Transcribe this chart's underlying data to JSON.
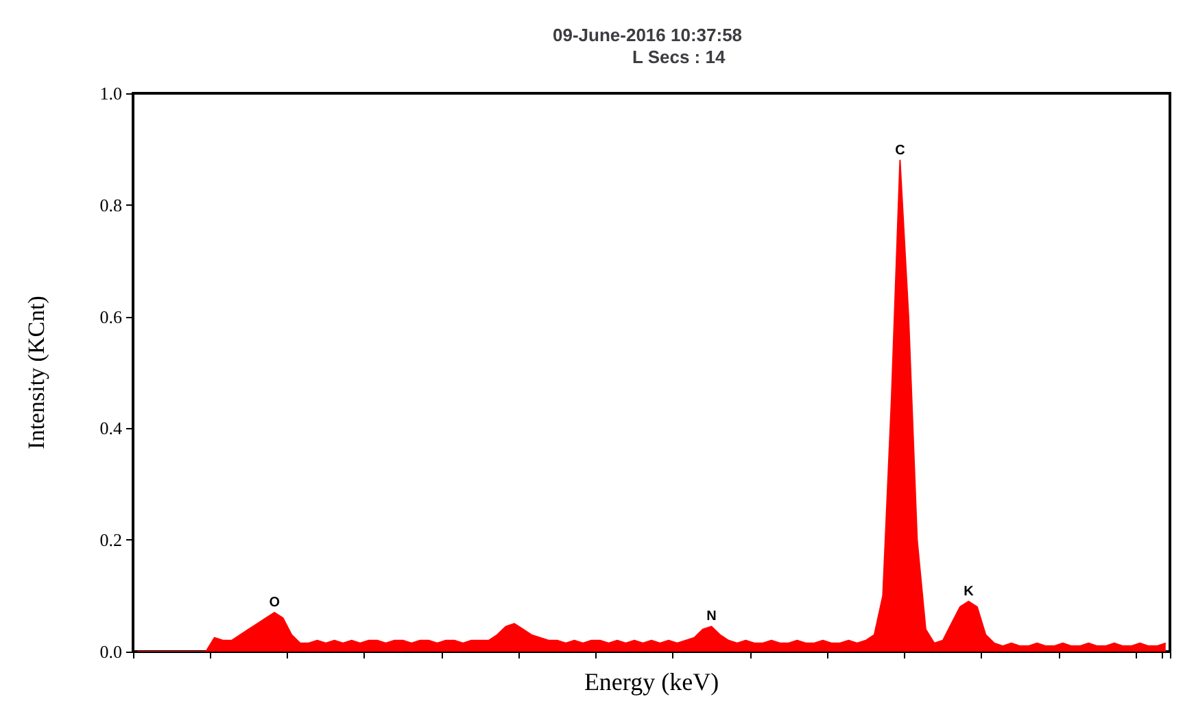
{
  "chart_data": {
    "type": "area",
    "title": "09-June-2016 10:37:58",
    "subtitle": "L Secs : 14",
    "xlabel": "Energy (keV)",
    "ylabel": "Intensity (KCnt)",
    "categories": [
      null,
      null,
      null,
      null,
      null,
      null,
      null,
      null,
      null,
      null,
      null,
      null,
      null,
      null,
      null,
      null,
      null,
      null,
      null,
      null,
      null,
      null,
      null,
      null,
      null,
      null,
      null,
      null,
      null,
      null,
      null,
      null,
      null,
      null,
      null,
      null,
      null,
      null,
      null,
      null,
      null,
      null,
      null,
      null,
      null,
      null,
      null,
      null,
      null,
      null,
      null,
      null,
      null,
      null,
      null,
      null,
      null,
      null,
      null,
      null,
      null,
      null,
      null,
      null,
      null,
      null,
      null,
      null,
      null,
      null,
      null,
      null,
      null,
      null,
      null,
      null,
      null,
      null,
      null,
      null,
      null,
      null,
      null,
      null,
      null,
      null,
      null,
      null,
      null,
      null,
      null,
      null,
      null,
      null,
      null,
      null,
      null,
      null,
      null,
      null,
      null,
      null,
      null,
      null,
      null,
      null,
      null,
      null,
      null,
      null,
      null,
      null,
      null,
      null,
      null,
      null,
      null,
      null,
      null,
      null,
      null
    ],
    "series": [
      {
        "color": "#ff0000",
        "values": [
          0,
          0,
          0,
          0,
          0,
          0,
          0,
          0,
          0,
          0.025,
          0.02,
          0.02,
          0.03,
          0.04,
          0.05,
          0.06,
          0.07,
          0.06,
          0.03,
          0.015,
          0.015,
          0.02,
          0.015,
          0.02,
          0.015,
          0.02,
          0.015,
          0.02,
          0.02,
          0.015,
          0.02,
          0.02,
          0.015,
          0.02,
          0.02,
          0.015,
          0.02,
          0.02,
          0.015,
          0.02,
          0.02,
          0.02,
          0.03,
          0.045,
          0.05,
          0.04,
          0.03,
          0.025,
          0.02,
          0.02,
          0.015,
          0.02,
          0.015,
          0.02,
          0.02,
          0.015,
          0.02,
          0.015,
          0.02,
          0.015,
          0.02,
          0.015,
          0.02,
          0.015,
          0.02,
          0.025,
          0.04,
          0.045,
          0.03,
          0.02,
          0.015,
          0.02,
          0.015,
          0.015,
          0.02,
          0.015,
          0.015,
          0.02,
          0.015,
          0.015,
          0.02,
          0.015,
          0.015,
          0.02,
          0.015,
          0.02,
          0.03,
          0.1,
          0.45,
          0.88,
          0.6,
          0.2,
          0.04,
          0.015,
          0.02,
          0.05,
          0.08,
          0.09,
          0.08,
          0.03,
          0.015,
          0.01,
          0.015,
          0.01,
          0.01,
          0.015,
          0.01,
          0.01,
          0.015,
          0.01,
          0.01,
          0.015,
          0.01,
          0.01,
          0.015,
          0.01,
          0.01,
          0.015,
          0.01,
          0.01,
          0.015
        ],
        "value_labels": [
          null,
          null,
          null,
          null,
          null,
          null,
          null,
          null,
          null,
          null,
          null,
          null,
          null,
          null,
          null,
          null,
          "O",
          null,
          null,
          null,
          null,
          null,
          null,
          null,
          null,
          null,
          null,
          null,
          null,
          null,
          null,
          null,
          null,
          null,
          null,
          null,
          null,
          null,
          null,
          null,
          null,
          null,
          null,
          null,
          null,
          null,
          null,
          null,
          null,
          null,
          null,
          null,
          null,
          null,
          null,
          null,
          null,
          null,
          null,
          null,
          null,
          null,
          null,
          null,
          null,
          null,
          null,
          "N",
          null,
          null,
          null,
          null,
          null,
          null,
          null,
          null,
          null,
          null,
          null,
          null,
          null,
          null,
          null,
          null,
          null,
          null,
          null,
          null,
          null,
          "C",
          null,
          null,
          null,
          null,
          null,
          null,
          null,
          "K",
          null,
          null,
          null,
          null,
          null,
          null,
          null,
          null,
          null,
          null,
          null,
          null,
          null,
          null,
          null,
          null,
          null,
          null,
          null,
          null,
          null,
          null,
          null
        ]
      }
    ],
    "ylim": [
      0,
      1
    ],
    "yticks": [
      {
        "value": 0,
        "label": "0.0"
      },
      0.2,
      0.4,
      0.6,
      0.8,
      {
        "value": 1,
        "label": "1.0"
      }
    ],
    "grid": false,
    "marker": "none"
  }
}
